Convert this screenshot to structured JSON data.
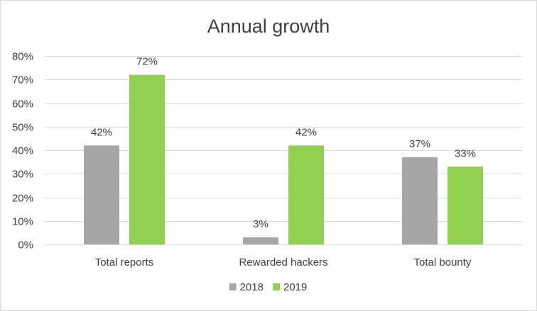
{
  "chart_data": {
    "type": "bar",
    "title": "Annual growth",
    "xlabel": "",
    "ylabel": "",
    "categories": [
      "Total reports",
      "Rewarded hackers",
      "Total bounty"
    ],
    "series": [
      {
        "name": "2018",
        "values": [
          42,
          3,
          37
        ],
        "labels": [
          "42%",
          "3%",
          "37%"
        ],
        "color": "#a6a6a6"
      },
      {
        "name": "2019",
        "values": [
          72,
          42,
          33
        ],
        "labels": [
          "72%",
          "42%",
          "33%"
        ],
        "color": "#92d050"
      }
    ],
    "ylim": [
      0,
      80
    ],
    "yticks": [
      0,
      10,
      20,
      30,
      40,
      50,
      60,
      70,
      80
    ],
    "ytick_labels": [
      "0%",
      "10%",
      "20%",
      "30%",
      "40%",
      "50%",
      "60%",
      "70%",
      "80%"
    ],
    "grid": true,
    "legend_position": "bottom"
  }
}
